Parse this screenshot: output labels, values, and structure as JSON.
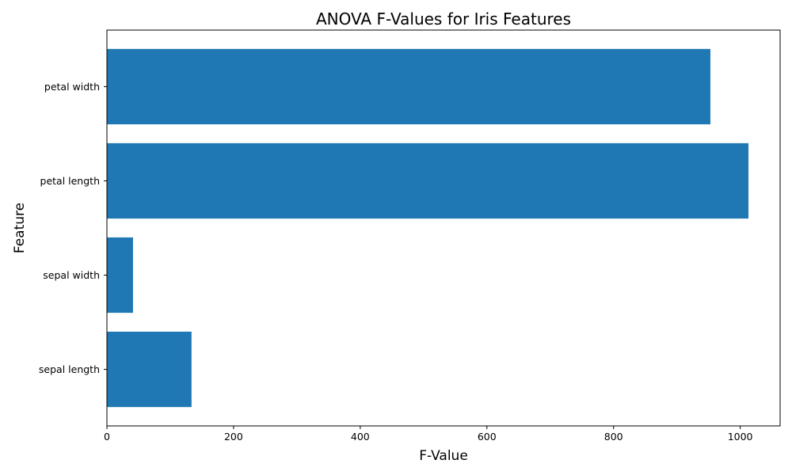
{
  "chart_data": {
    "type": "bar",
    "orientation": "horizontal",
    "title": "ANOVA F-Values for Iris Features",
    "xlabel": "F-Value",
    "ylabel": "Feature",
    "categories": [
      "sepal length",
      "sepal width",
      "petal length",
      "petal width"
    ],
    "values": [
      133.6,
      41.2,
      1013.0,
      952.9
    ],
    "xlim": [
      0,
      1063
    ],
    "xticks": [
      0,
      200,
      400,
      600,
      800,
      1000
    ],
    "xtick_labels": [
      "0",
      "200",
      "400",
      "600",
      "800",
      "1000"
    ],
    "bar_color": "#1f77b4",
    "grid": false
  }
}
